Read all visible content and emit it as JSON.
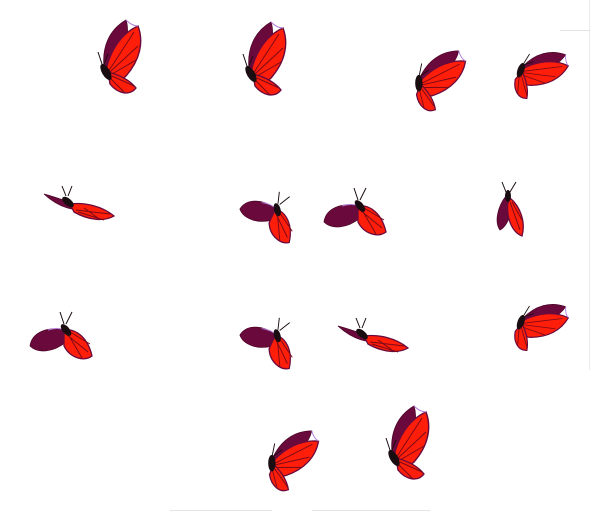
{
  "sprite_sheet": {
    "subject": "butterfly",
    "frame_count": 14,
    "columns": 4,
    "colors": {
      "wing_dark": "#6a0a3c",
      "wing_dark_edge": "#4d0528",
      "wing_red": "#ff1e0a",
      "wing_red_shade": "#e0140a",
      "vein": "#7a0a18",
      "body": "#1a0d12",
      "highlight": "#b07bd8",
      "background": "#ffffff"
    },
    "frames": [
      {
        "name": "frame-01",
        "pose": "upright-open"
      },
      {
        "name": "frame-02",
        "pose": "upright-open"
      },
      {
        "name": "frame-03",
        "pose": "tilted-open"
      },
      {
        "name": "frame-04",
        "pose": "tilted-low"
      },
      {
        "name": "frame-05",
        "pose": "flat-side"
      },
      {
        "name": "frame-06",
        "pose": "flat-down"
      },
      {
        "name": "frame-07",
        "pose": "half-open"
      },
      {
        "name": "frame-08",
        "pose": "folded-up"
      },
      {
        "name": "frame-09",
        "pose": "half-open"
      },
      {
        "name": "frame-10",
        "pose": "flat-down"
      },
      {
        "name": "frame-11",
        "pose": "flat-side"
      },
      {
        "name": "frame-12",
        "pose": "tilted-low"
      },
      {
        "name": "frame-13",
        "pose": "tilted-open"
      },
      {
        "name": "frame-14",
        "pose": "upright-open"
      }
    ]
  }
}
